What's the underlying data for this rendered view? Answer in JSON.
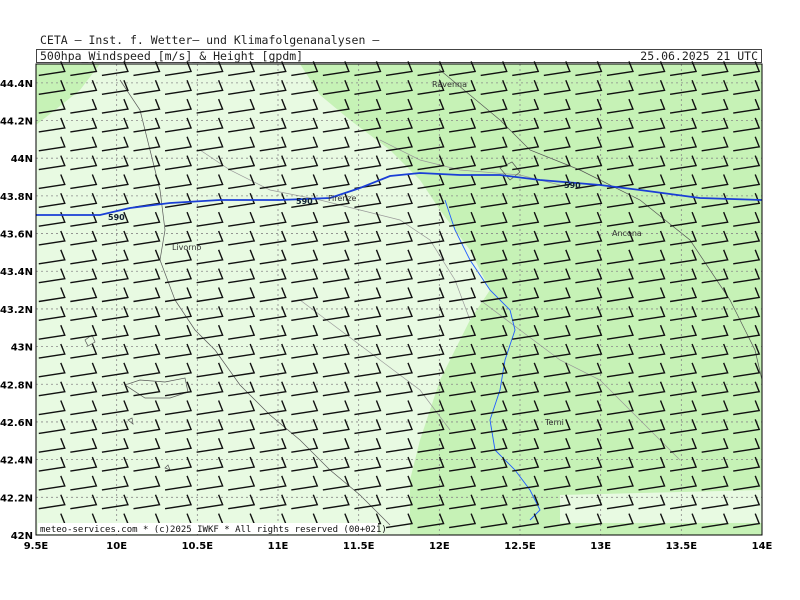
{
  "header": {
    "institute": "CETA – Inst. f. Wetter– und Klimafolgenanalysen –",
    "parameter": "500hpa_Windspeed_[m/s]_&_Height_[gpdm]",
    "datetime": "25.06.2025 21 UTC"
  },
  "axes": {
    "lon_labels": [
      "9.5E",
      "10E",
      "10.5E",
      "11E",
      "11.5E",
      "12E",
      "12.5E",
      "13E",
      "13.5E",
      "14E"
    ],
    "lat_labels": [
      "42N",
      "42.2N",
      "42.4N",
      "42.6N",
      "42.8N",
      "43N",
      "43.2N",
      "43.4N",
      "43.6N",
      "43.8N",
      "44N",
      "44.2N",
      "44.4N"
    ]
  },
  "cities": [
    {
      "name": "Ravenna"
    },
    {
      "name": "Firenze"
    },
    {
      "name": "Livorno"
    },
    {
      "name": "Ancona"
    },
    {
      "name": "Terni"
    }
  ],
  "contour": {
    "value": "590",
    "labels": [
      "590",
      "590",
      "590"
    ]
  },
  "footer": {
    "copyright": "meteo-services.com * (c)2025 IWKF * All rights reserved (00+021)"
  },
  "colors": {
    "shade_light": "#e8fae2",
    "shade_mid": "#c6f2b6",
    "contour": "#1a3ed6",
    "river": "#1f5cff",
    "barb": "#111111"
  },
  "wind": {
    "direction_from": "W",
    "speed_class": "10 kt"
  }
}
